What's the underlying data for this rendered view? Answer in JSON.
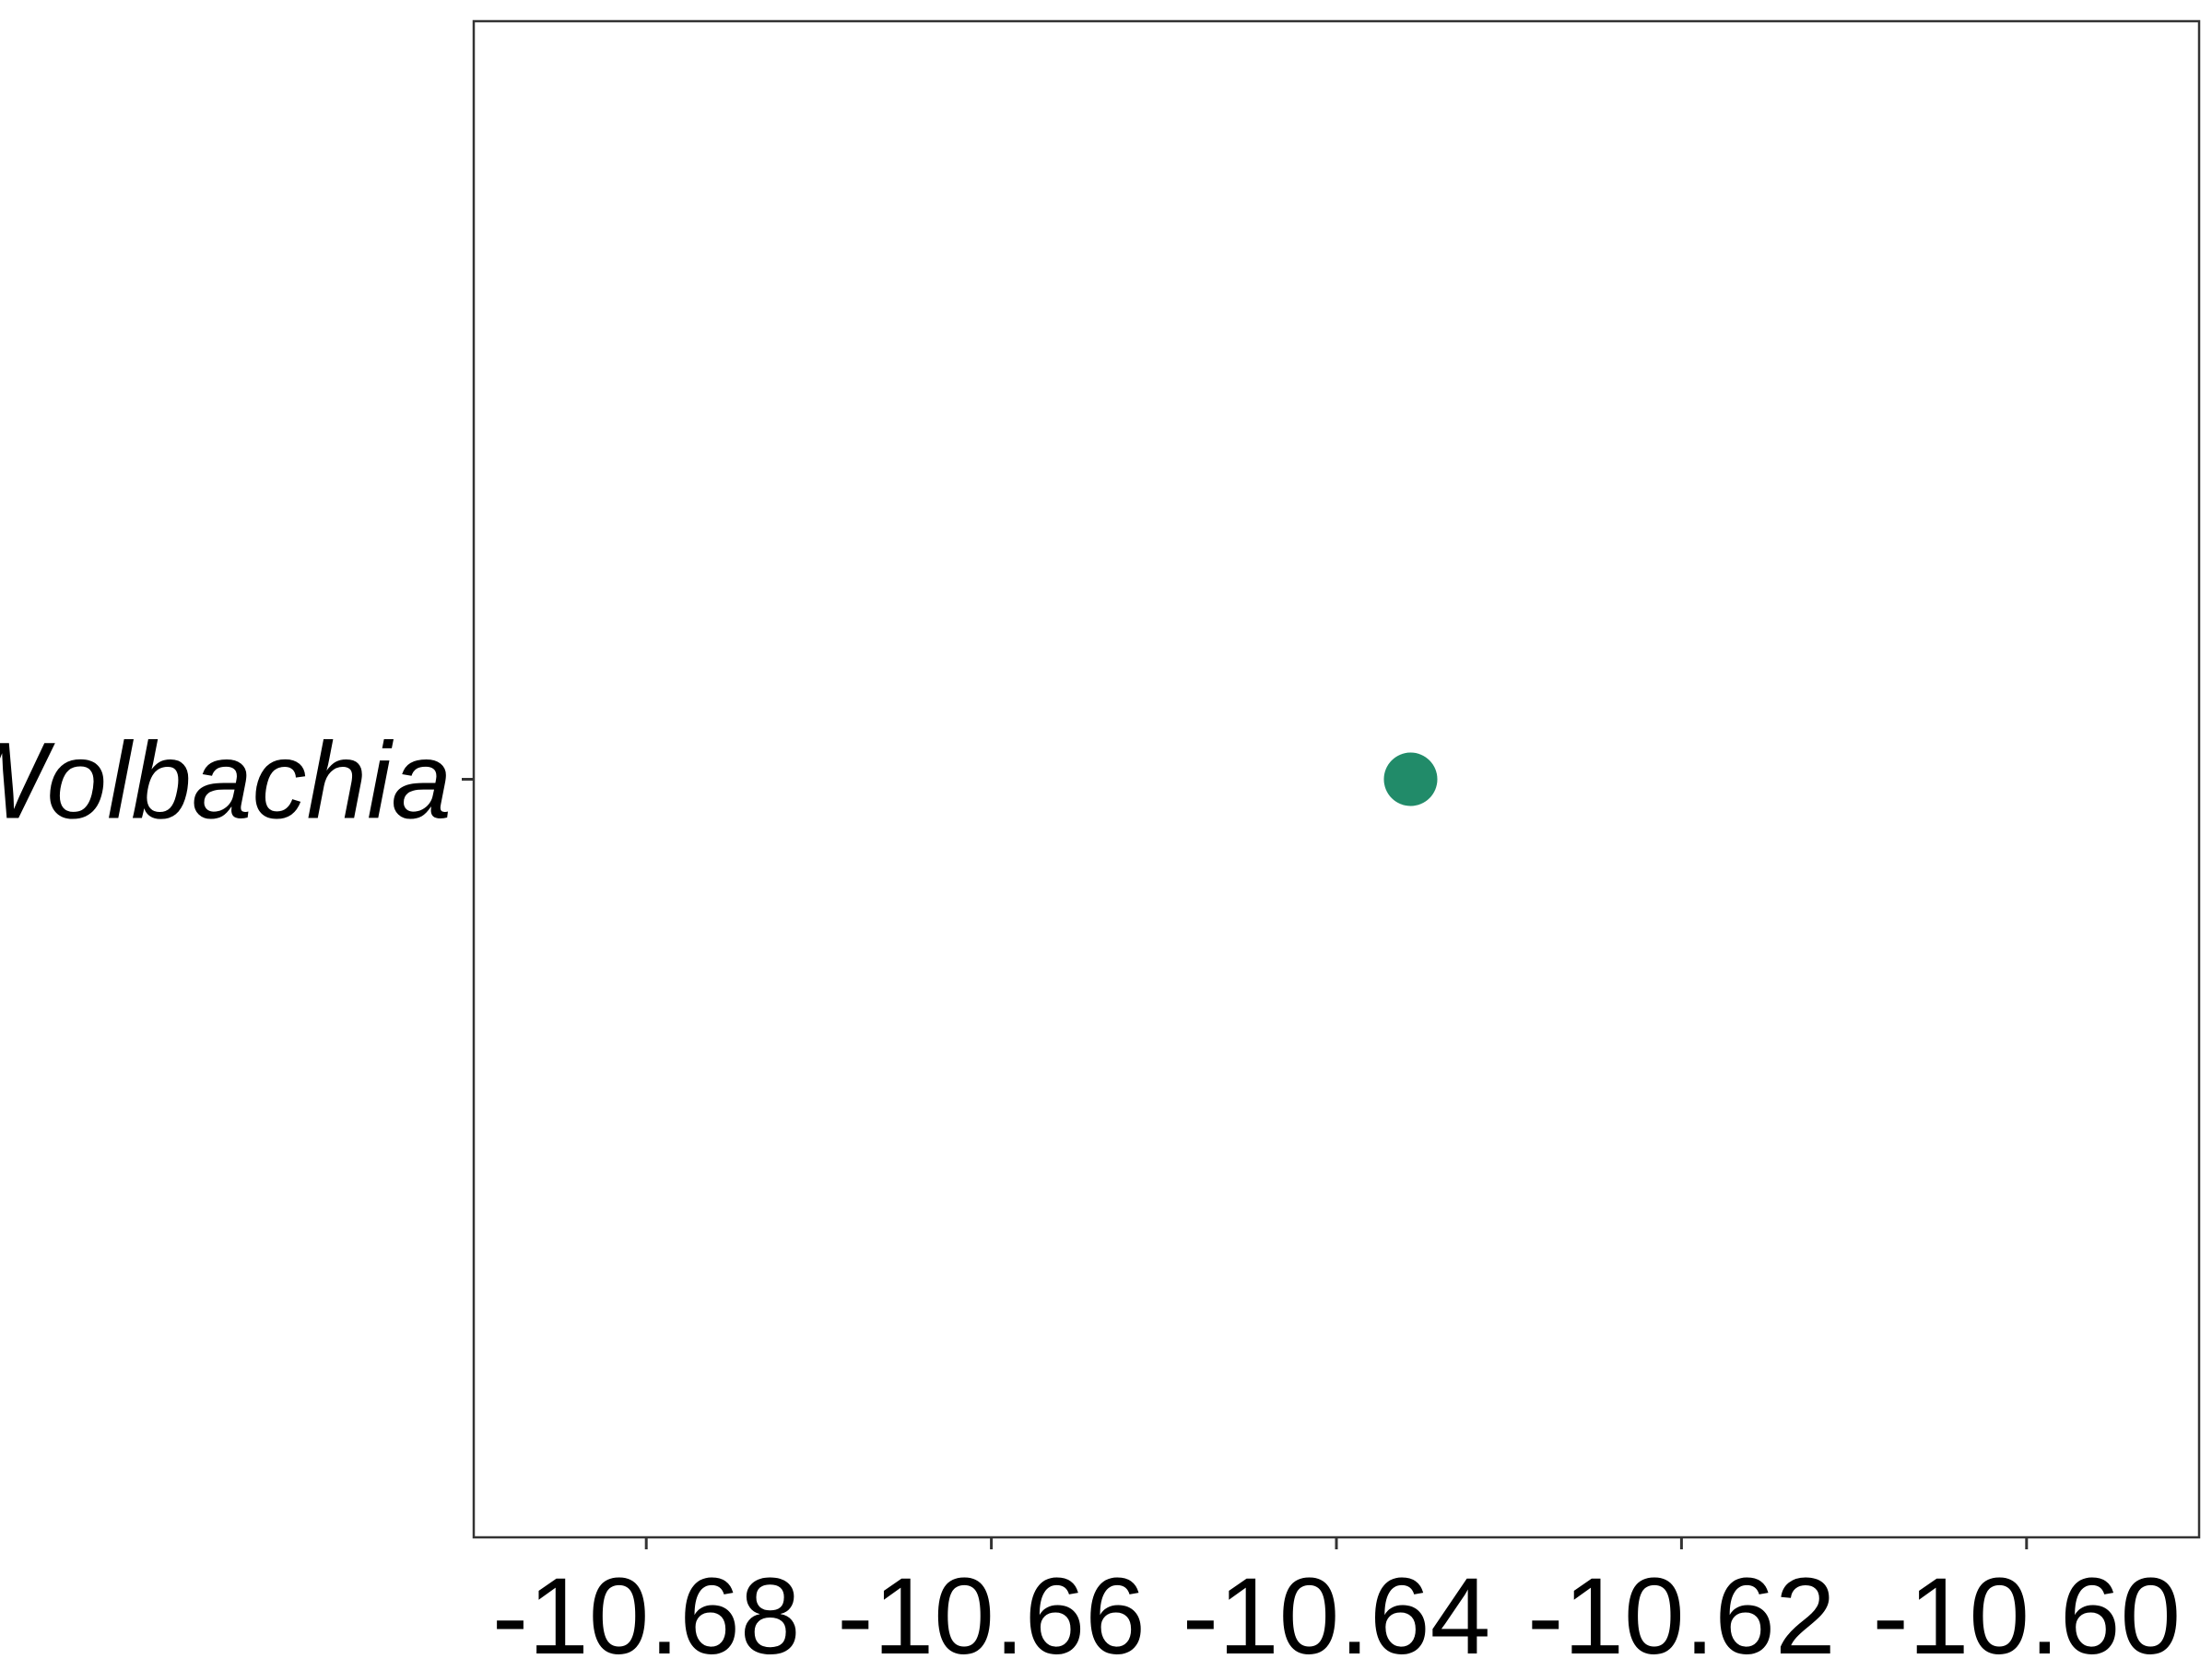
{
  "chart_data": {
    "type": "scatter",
    "title": "",
    "xlabel": "",
    "ylabel": "",
    "xlim": [
      -10.69,
      -10.59
    ],
    "x_ticks": [
      -10.68,
      -10.66,
      -10.64,
      -10.62,
      -10.6
    ],
    "x_tick_labels": [
      "-10.68",
      "-10.66",
      "-10.64",
      "-10.62",
      "-10.60"
    ],
    "categories": [
      "Wolbachia"
    ],
    "category_style": "italic",
    "points": [
      {
        "category": "Wolbachia",
        "x": -10.6357
      }
    ],
    "point_color": "#218B69",
    "grid": false,
    "legend": "none"
  }
}
